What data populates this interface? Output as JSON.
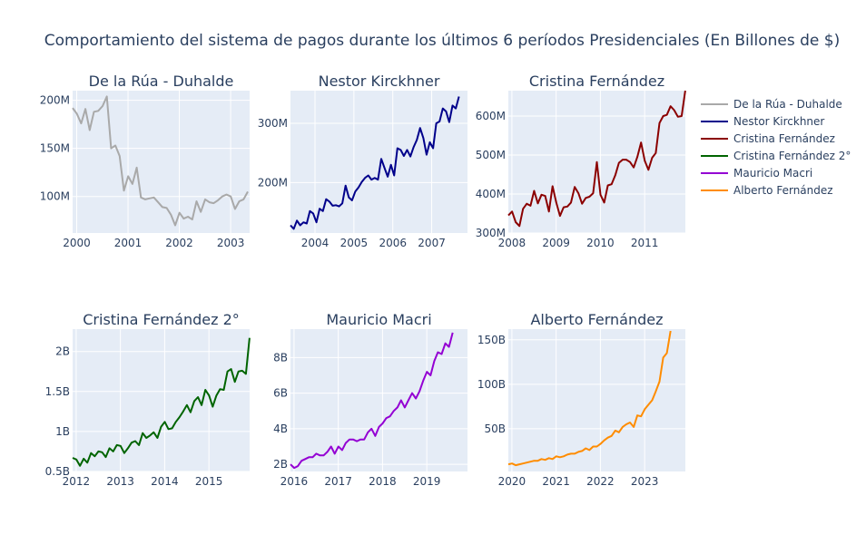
{
  "title": "Comportamiento del sistema de pagos durante los últimos 6 períodos Presidenciales (En Billones de $)",
  "chart_data": [
    {
      "type": "line",
      "title": "De la Rúa - Duhalde",
      "color": "#a9a9a9",
      "x_start": 1999.92,
      "x_step": 0.0833,
      "xlim": [
        1999.92,
        2003.37
      ],
      "ylim": [
        62,
        210
      ],
      "x_ticks": [
        2000,
        2001,
        2002,
        2003
      ],
      "y_ticks": [
        100,
        150,
        200
      ],
      "y_tick_labels": [
        "100M",
        "150M",
        "200M"
      ],
      "values": [
        192,
        186,
        176,
        191,
        169,
        188,
        189,
        194,
        204,
        150,
        153,
        142,
        106,
        121,
        113,
        130,
        99,
        97,
        98,
        99,
        94,
        89,
        88,
        81,
        70,
        83,
        77,
        79,
        76,
        95,
        84,
        97,
        94,
        93,
        96,
        100,
        102,
        100,
        87,
        95,
        97,
        105
      ]
    },
    {
      "type": "line",
      "title": "Nestor Kirckhner",
      "color": "#00008b",
      "x_start": 2003.37,
      "x_step": 0.0833,
      "xlim": [
        2003.37,
        2007.92
      ],
      "ylim": [
        115,
        355
      ],
      "x_ticks": [
        2004,
        2005,
        2006,
        2007
      ],
      "y_ticks": [
        200,
        300
      ],
      "y_tick_labels": [
        "200M",
        "300M"
      ],
      "values": [
        128,
        122,
        136,
        128,
        133,
        131,
        152,
        148,
        133,
        156,
        152,
        172,
        168,
        161,
        162,
        160,
        165,
        195,
        175,
        170,
        185,
        192,
        201,
        208,
        212,
        205,
        208,
        205,
        240,
        225,
        210,
        230,
        212,
        258,
        255,
        245,
        255,
        244,
        260,
        272,
        292,
        275,
        247,
        268,
        258,
        300,
        303,
        325,
        320,
        302,
        330,
        325,
        345
      ]
    },
    {
      "type": "line",
      "title": "Cristina Fernández",
      "color": "#8b0000",
      "x_start": 2007.92,
      "x_step": 0.0833,
      "xlim": [
        2007.92,
        2011.92
      ],
      "ylim": [
        300,
        665
      ],
      "x_ticks": [
        2008,
        2009,
        2010,
        2011
      ],
      "y_ticks": [
        300,
        400,
        500,
        600
      ],
      "y_tick_labels": [
        "300M",
        "400M",
        "500M",
        "600M"
      ],
      "values": [
        345,
        355,
        328,
        318,
        362,
        375,
        370,
        408,
        376,
        398,
        395,
        355,
        420,
        378,
        344,
        366,
        368,
        378,
        418,
        402,
        375,
        390,
        393,
        402,
        482,
        398,
        378,
        422,
        425,
        448,
        480,
        488,
        488,
        482,
        468,
        495,
        532,
        485,
        462,
        493,
        505,
        582,
        600,
        603,
        625,
        615,
        598,
        600,
        665
      ]
    },
    {
      "type": "line",
      "title": "Cristina Fernández 2°",
      "color": "#006400",
      "x_start": 2011.92,
      "x_step": 0.0833,
      "xlim": [
        2011.92,
        2015.92
      ],
      "ylim": [
        0.5,
        2.28
      ],
      "x_ticks": [
        2012,
        2013,
        2014,
        2015
      ],
      "y_ticks": [
        0.5,
        1,
        1.5,
        2
      ],
      "y_tick_labels": [
        "0.5B",
        "1B",
        "1.5B",
        "2B"
      ],
      "values": [
        0.67,
        0.65,
        0.57,
        0.66,
        0.61,
        0.73,
        0.69,
        0.75,
        0.74,
        0.68,
        0.79,
        0.75,
        0.83,
        0.82,
        0.73,
        0.79,
        0.86,
        0.88,
        0.83,
        0.98,
        0.92,
        0.95,
        0.99,
        0.92,
        1.06,
        1.12,
        1.03,
        1.04,
        1.12,
        1.18,
        1.25,
        1.33,
        1.24,
        1.38,
        1.43,
        1.33,
        1.52,
        1.45,
        1.31,
        1.45,
        1.53,
        1.52,
        1.75,
        1.78,
        1.62,
        1.75,
        1.76,
        1.72,
        2.17
      ]
    },
    {
      "type": "line",
      "title": "Mauricio Macri",
      "color": "#9400d3",
      "x_start": 2015.92,
      "x_step": 0.0833,
      "xlim": [
        2015.92,
        2019.92
      ],
      "ylim": [
        1.6,
        9.6
      ],
      "x_ticks": [
        2016,
        2017,
        2018,
        2019
      ],
      "y_ticks": [
        2,
        4,
        6,
        8
      ],
      "y_tick_labels": [
        "2B",
        "4B",
        "6B",
        "8B"
      ],
      "values": [
        2.0,
        1.8,
        1.9,
        2.2,
        2.3,
        2.4,
        2.4,
        2.6,
        2.5,
        2.5,
        2.7,
        3.0,
        2.6,
        3.0,
        2.8,
        3.2,
        3.4,
        3.4,
        3.3,
        3.4,
        3.4,
        3.8,
        4.0,
        3.6,
        4.1,
        4.3,
        4.6,
        4.7,
        5.0,
        5.2,
        5.6,
        5.2,
        5.6,
        6.0,
        5.7,
        6.1,
        6.7,
        7.2,
        7.0,
        7.8,
        8.3,
        8.2,
        8.8,
        8.6,
        9.4
      ]
    },
    {
      "type": "line",
      "title": "Alberto Fernández",
      "color": "#ff8c00",
      "x_start": 2019.92,
      "x_step": 0.0833,
      "xlim": [
        2019.92,
        2023.92
      ],
      "ylim": [
        2,
        162
      ],
      "x_ticks": [
        2020,
        2021,
        2022,
        2023
      ],
      "y_ticks": [
        50,
        100,
        150
      ],
      "y_tick_labels": [
        "50B",
        "100B",
        "150B"
      ],
      "values": [
        10,
        11,
        9,
        10,
        11,
        12,
        13,
        14,
        14,
        16,
        15,
        17,
        16,
        19,
        18,
        19,
        21,
        22,
        22,
        24,
        25,
        28,
        26,
        30,
        30,
        33,
        37,
        40,
        42,
        48,
        46,
        52,
        55,
        57,
        52,
        65,
        64,
        72,
        77,
        82,
        92,
        103,
        130,
        135,
        160
      ]
    }
  ],
  "legend": {
    "placement": "right",
    "items": [
      {
        "label": "De la Rúa - Duhalde",
        "color": "#a9a9a9"
      },
      {
        "label": "Nestor Kirckhner",
        "color": "#00008b"
      },
      {
        "label": "Cristina Fernández",
        "color": "#8b0000"
      },
      {
        "label": "Cristina Fernández 2°",
        "color": "#006400"
      },
      {
        "label": "Mauricio Macri",
        "color": "#9400d3"
      },
      {
        "label": "Alberto Fernández",
        "color": "#ff8c00"
      }
    ]
  }
}
